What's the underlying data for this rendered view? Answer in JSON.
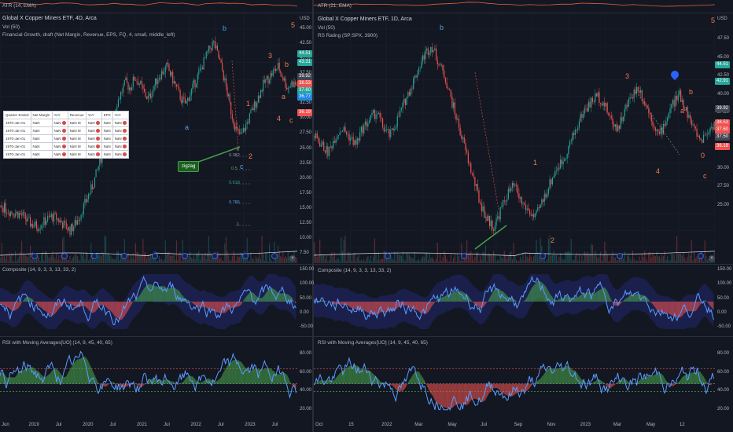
{
  "atr": {
    "left": {
      "label": "ATR (14, EMA)",
      "points": [
        60,
        55,
        58,
        52,
        50,
        48,
        52,
        56,
        60,
        58,
        54,
        50,
        47,
        45,
        50,
        55,
        52,
        48,
        46,
        44,
        50,
        58,
        62,
        60,
        55,
        50,
        48,
        52,
        57,
        60,
        58,
        56,
        52,
        50,
        48,
        46,
        44,
        42,
        40,
        38
      ]
    },
    "right": {
      "label": "ATR (21, EMA)",
      "points": [
        42,
        44,
        46,
        48,
        50,
        52,
        50,
        48,
        46,
        45,
        44,
        46,
        48,
        52,
        58,
        62,
        60,
        56,
        52,
        50,
        48,
        46,
        44,
        46,
        50,
        54,
        58,
        56,
        52,
        48,
        46,
        44,
        42,
        40,
        38,
        40,
        42,
        44,
        46,
        48
      ]
    }
  },
  "left_chart": {
    "title": "Global X Copper Miners ETF, 4D, Arca",
    "vol": "Vol (50)",
    "indicator": "Financial Growth, draft (Net Margin, Revenue, EPS, FQ, 4, small, middle_left)",
    "currency": "USD",
    "price_axis": [
      "45.00",
      "42.50",
      "40.00",
      "37.50",
      "35.00",
      "32.50",
      "30.00",
      "27.50",
      "25.00",
      "22.50",
      "20.00",
      "17.50",
      "15.00",
      "12.50",
      "10.00",
      "7.50"
    ],
    "price_tags": [
      {
        "value": "44.51",
        "color": "#26a69a"
      },
      {
        "value": "43.31",
        "color": "#26a69a"
      },
      {
        "value": "39.92",
        "color": "#434651"
      },
      {
        "value": "38.53",
        "color": "#ef5350"
      },
      {
        "value": "37.60",
        "color": "#26a69a"
      },
      {
        "value": "36.77",
        "color": "#1e88e5"
      },
      {
        "value": "36.19",
        "color": "#ef5350"
      }
    ],
    "waves": [
      {
        "text": "b",
        "color": "#4fa3e0"
      },
      {
        "text": "5",
        "color": "#ef7a4a"
      },
      {
        "text": "3",
        "color": "#ef7a4a"
      },
      {
        "text": "b",
        "color": "#ef7a4a"
      },
      {
        "text": "a",
        "color": "#ef7a4a"
      },
      {
        "text": "1",
        "color": "#ef7a4a"
      },
      {
        "text": "4",
        "color": "#ef7a4a"
      },
      {
        "text": "c",
        "color": "#ef7a4a"
      },
      {
        "text": "a",
        "color": "#4fa3e0"
      },
      {
        "text": "2",
        "color": "#ef7a4a"
      },
      {
        "text": "c",
        "color": "#4fa3e0"
      }
    ],
    "fibs": [
      {
        "text": "0",
        "color": "#9598a1"
      },
      {
        "text": "0.382",
        "color": "#9598a1"
      },
      {
        "text": "0.5",
        "color": "#4caf50"
      },
      {
        "text": "0.618",
        "color": "#26a69a"
      },
      {
        "text": "0.786",
        "color": "#4fa3e0"
      },
      {
        "text": "1",
        "color": "#9598a1"
      }
    ],
    "zigzag_label": "zigzag",
    "table": {
      "headers": [
        "Quarter Ended",
        "Net Margin",
        "YoY",
        "Revenue",
        "YoY",
        "EPS",
        "YoY"
      ],
      "rows": [
        [
          "1970-Jan-01",
          "NaN",
          "NaN",
          "NaN M",
          "NaN",
          "NaN",
          "NaN"
        ],
        [
          "1970-Jan-01",
          "NaN",
          "NaN",
          "NaN M",
          "NaN",
          "NaN",
          "NaN"
        ],
        [
          "1970-Jan-01",
          "NaN",
          "NaN",
          "NaN M",
          "NaN",
          "NaN",
          "NaN"
        ],
        [
          "1970-Jan-01",
          "NaN",
          "NaN",
          "NaN M",
          "NaN",
          "NaN",
          "NaN"
        ],
        [
          "1970-Jan-01",
          "NaN",
          "NaN",
          "NaN M",
          "NaN",
          "NaN",
          "NaN"
        ]
      ]
    },
    "composite_label": "Composite (14, 9, 3, 3, 13, 33, 2)",
    "composite_axis": [
      "150.00",
      "100.00",
      "50.00",
      "0.00",
      "-50.00"
    ],
    "rsi_label": "RSI with Moving Averages[UO] (14, 9, 45, 40, 65)",
    "rsi_axis": [
      "80.00",
      "60.00",
      "40.00",
      "20.00"
    ],
    "time_axis": [
      "Jun",
      "2019",
      "Jul",
      "2020",
      "Jul",
      "2021",
      "Jul",
      "2022",
      "Jul",
      "2023",
      "Jul"
    ],
    "price_series": [
      14,
      13.5,
      13,
      12.8,
      12.5,
      12,
      11,
      10.5,
      10.2,
      10.8,
      11.5,
      12,
      11.8,
      11,
      10.2,
      9.5,
      10.5,
      12,
      14,
      16,
      18,
      21,
      24,
      27,
      30,
      33,
      35,
      37,
      36,
      38,
      37,
      35,
      34,
      36,
      38,
      39,
      40,
      38,
      36,
      34,
      33,
      35,
      37,
      39,
      41,
      43,
      44.5,
      42,
      39,
      35,
      31,
      28,
      27,
      29,
      31,
      33,
      35,
      37,
      38,
      39,
      40,
      38,
      36,
      37,
      36.5
    ]
  },
  "right_chart": {
    "title": "Global X Copper Miners ETF, 1D, Arca",
    "vol": "Vol (50)",
    "rs": "RS Rating (SP:SPX, 3900)",
    "currency": "USD",
    "price_axis": [
      "47.50",
      "45.00",
      "42.50",
      "40.00",
      "37.50",
      "35.00",
      "32.50",
      "30.00",
      "27.50",
      "25.00"
    ],
    "price_tags": [
      {
        "value": "44.51",
        "color": "#26a69a"
      },
      {
        "value": "42.91",
        "color": "#26a69a"
      },
      {
        "value": "39.92",
        "color": "#434651"
      },
      {
        "value": "38.53",
        "color": "#ef5350"
      },
      {
        "value": "37.60",
        "color": "#ef5350"
      },
      {
        "value": "37.50",
        "color": "#434651"
      },
      {
        "value": "36.19",
        "color": "#ef5350"
      }
    ],
    "waves": [
      {
        "text": "b",
        "color": "#4fa3e0"
      },
      {
        "text": "5",
        "color": "#ef7a4a"
      },
      {
        "text": "3",
        "color": "#ef7a4a"
      },
      {
        "text": "b",
        "color": "#ef7a4a"
      },
      {
        "text": "a",
        "color": "#ef7a4a"
      },
      {
        "text": "1",
        "color": "#ef7a4a"
      },
      {
        "text": "4",
        "color": "#ef7a4a"
      },
      {
        "text": "0",
        "color": "#ef7a4a"
      },
      {
        "text": "c",
        "color": "#ef7a4a"
      },
      {
        "text": "2",
        "color": "#ef7a4a"
      }
    ],
    "composite_label": "Composite (14, 9, 3, 3, 13, 33, 2)",
    "composite_axis": [
      "150.00",
      "100.00",
      "50.00",
      "0.00",
      "-50.00"
    ],
    "rsi_label": "RSI with Moving Averages[UO] (14, 9, 45, 40, 65)",
    "rsi_axis": [
      "80.00",
      "60.00",
      "40.00",
      "20.00"
    ],
    "time_axis": [
      "Oct",
      "15",
      "2022",
      "Mar",
      "May",
      "Jul",
      "Sep",
      "Nov",
      "2023",
      "Mar",
      "May",
      "12"
    ],
    "price_series": [
      36,
      35,
      34,
      36,
      37,
      36,
      35,
      37,
      38,
      39,
      37,
      36,
      38,
      40,
      42,
      44,
      46,
      47,
      45,
      43,
      40,
      37,
      34,
      31,
      28,
      26,
      25,
      27,
      29,
      30,
      28,
      27,
      26,
      28,
      30,
      32,
      33,
      35,
      37,
      39,
      40,
      41,
      40,
      38,
      37,
      39,
      41,
      42,
      40,
      38,
      36,
      38,
      40,
      41,
      39,
      37,
      35.5,
      36.5,
      37.6
    ]
  }
}
